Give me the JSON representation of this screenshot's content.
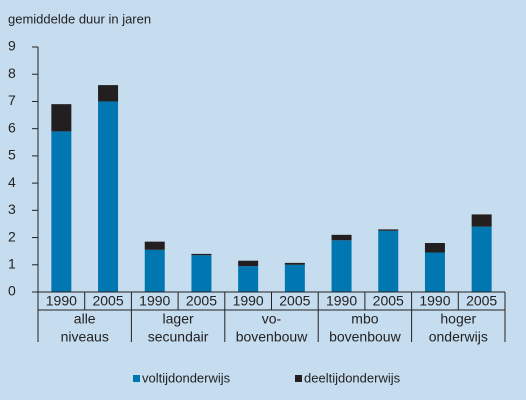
{
  "chart_data": {
    "type": "stacked_bar",
    "title": "gemiddelde duur in jaren",
    "categories": [
      "1990",
      "2005",
      "1990",
      "2005",
      "1990",
      "2005",
      "1990",
      "2005",
      "1990",
      "2005"
    ],
    "groups": [
      [
        "alle",
        "niveaus"
      ],
      [
        "lager",
        "secundair"
      ],
      [
        "vo-",
        "bovenbouw"
      ],
      [
        "mbo",
        "bovenbouw"
      ],
      [
        "hoger",
        "onderwijs"
      ]
    ],
    "series": [
      {
        "name": "voltijdonderwijs",
        "color": "#0077b0",
        "values": [
          5.9,
          7.0,
          1.55,
          1.35,
          0.95,
          1.0,
          1.9,
          2.25,
          1.45,
          2.4
        ]
      },
      {
        "name": "deeltijdonderwijs",
        "color": "#231f20",
        "values": [
          1.0,
          0.6,
          0.3,
          0.05,
          0.2,
          0.07,
          0.2,
          0.05,
          0.35,
          0.45
        ]
      }
    ],
    "ylim": [
      0,
      9
    ],
    "yticks": [
      0,
      1,
      2,
      3,
      4,
      5,
      6,
      7,
      8,
      9
    ]
  }
}
